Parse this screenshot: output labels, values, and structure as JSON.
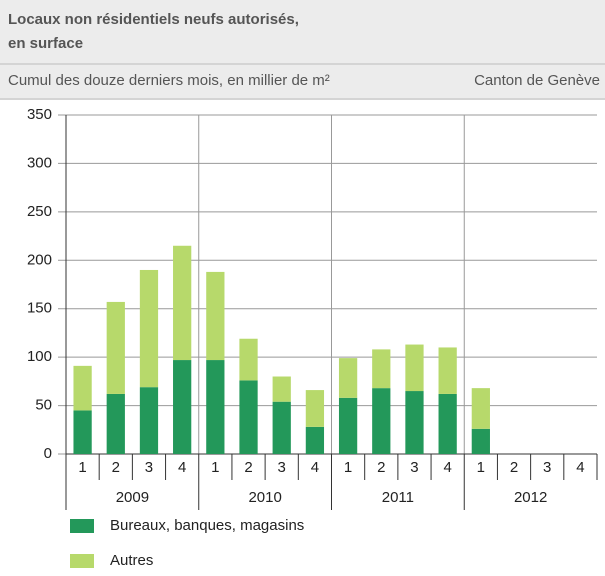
{
  "chart_data": {
    "type": "stacked_bar",
    "title": "Locaux non résidentiels neufs autorisés,",
    "title_line2": "en surface",
    "subtitle": "Cumul des douze derniers mois, en millier de m²",
    "region": "Canton de Genève",
    "categories": [
      "1",
      "2",
      "3",
      "4",
      "1",
      "2",
      "3",
      "4",
      "1",
      "2",
      "3",
      "4",
      "1",
      "2",
      "3",
      "4"
    ],
    "groups": [
      "2009",
      "2010",
      "2011",
      "2012"
    ],
    "series": [
      {
        "name": "Bureaux, banques, magasins",
        "color": "#23985a",
        "values": [
          45,
          62,
          69,
          97,
          97,
          76,
          54,
          28,
          58,
          68,
          65,
          62,
          26,
          null,
          null,
          null
        ]
      },
      {
        "name": "Autres",
        "color": "#b7d96b",
        "values": [
          46,
          95,
          121,
          118,
          91,
          43,
          26,
          38,
          41,
          40,
          48,
          48,
          42,
          null,
          null,
          null
        ]
      }
    ],
    "ylim": [
      0,
      350
    ],
    "yticks": [
      0,
      50,
      100,
      150,
      200,
      250,
      300,
      350
    ],
    "grid": true
  }
}
